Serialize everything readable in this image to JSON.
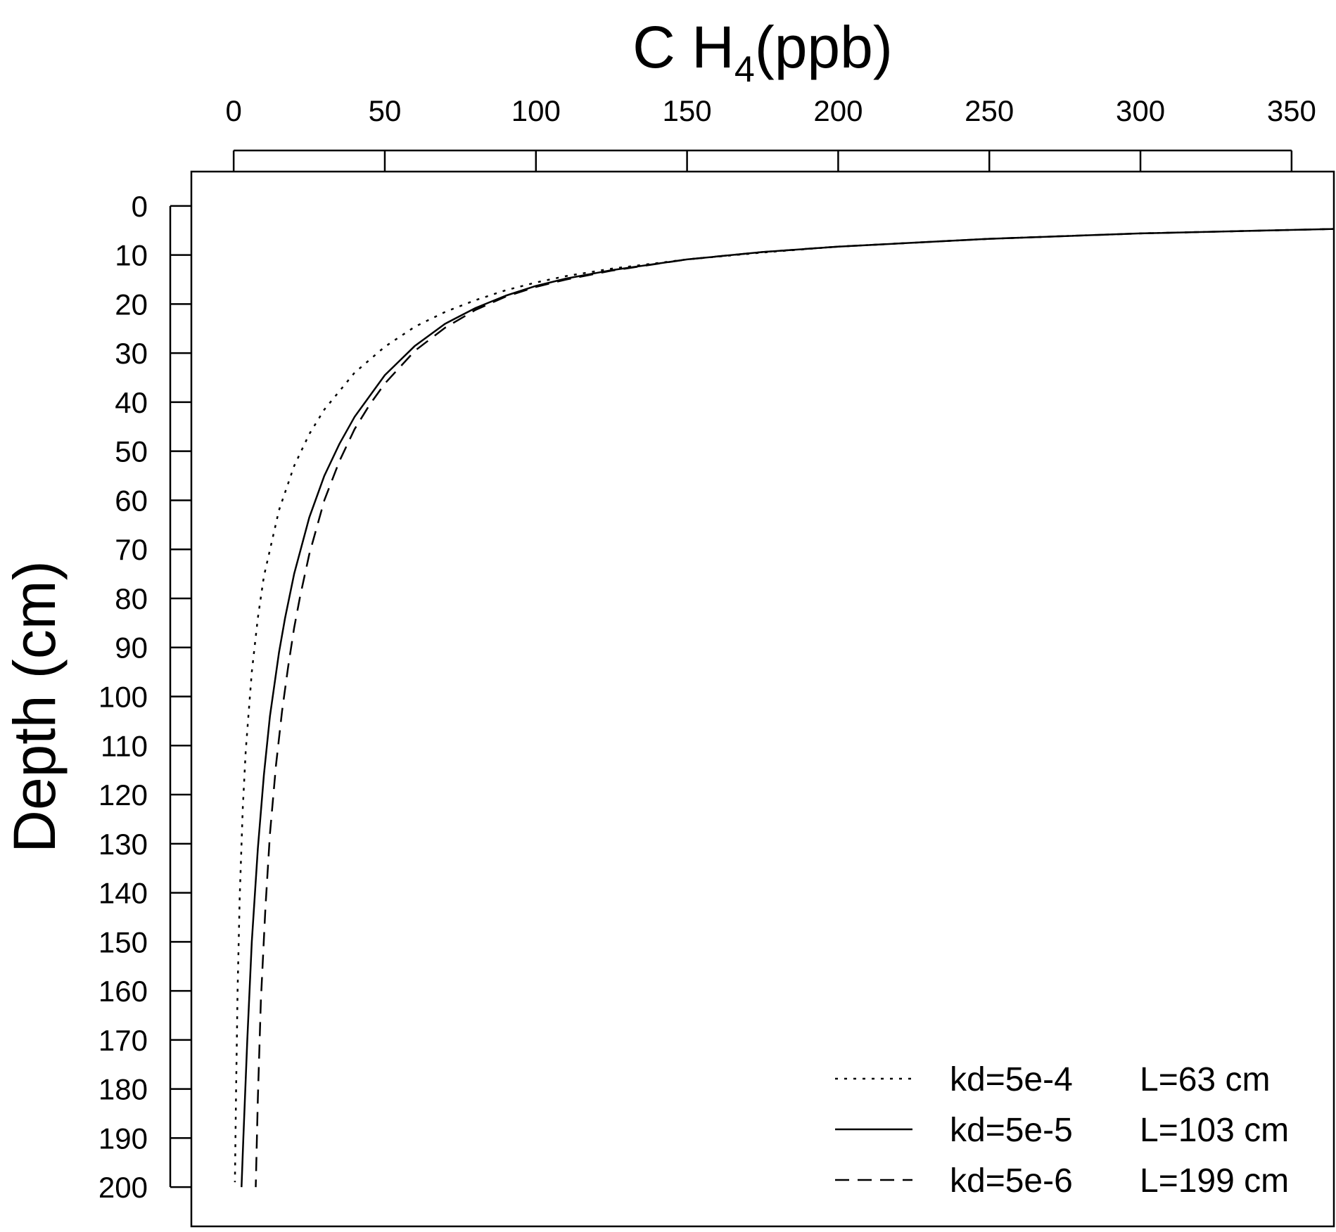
{
  "chart_data": {
    "type": "line",
    "xlabel": "C H",
    "xlabel_subscript": "4",
    "xlabel_suffix": "(ppb)",
    "ylabel": "Depth (cm)",
    "x_axis_position": "top",
    "y_axis_inverted": true,
    "xlim": [
      -14,
      364
    ],
    "ylim": [
      -7,
      208
    ],
    "xticks": [
      0,
      50,
      100,
      150,
      200,
      250,
      300,
      350
    ],
    "yticks": [
      0,
      10,
      20,
      30,
      40,
      50,
      60,
      70,
      80,
      90,
      100,
      110,
      120,
      130,
      140,
      150,
      160,
      170,
      180,
      190,
      200
    ],
    "grid": false,
    "legend_position": "bottom-right",
    "series": [
      {
        "name": "kd=5e-4",
        "label_L": "L=63 cm",
        "style": "dotted",
        "color": "#000000",
        "points": [
          [
            364,
            4.7
          ],
          [
            300,
            5.6
          ],
          [
            250,
            6.7
          ],
          [
            200,
            8.3
          ],
          [
            175,
            9.5
          ],
          [
            150,
            10.9
          ],
          [
            125,
            12.8
          ],
          [
            110,
            14.3
          ],
          [
            100,
            15.6
          ],
          [
            90,
            17.2
          ],
          [
            80,
            19.2
          ],
          [
            70,
            21.6
          ],
          [
            60,
            24.6
          ],
          [
            50,
            28.7
          ],
          [
            40,
            34.0
          ],
          [
            30,
            41.5
          ],
          [
            25,
            46.5
          ],
          [
            20,
            53.0
          ],
          [
            15,
            62.0
          ],
          [
            10,
            75.5
          ],
          [
            8,
            84.0
          ],
          [
            6,
            95.0
          ],
          [
            4,
            111.0
          ],
          [
            3,
            123.0
          ],
          [
            2,
            141.0
          ],
          [
            1.3,
            160.0
          ],
          [
            0.8,
            180.0
          ],
          [
            0.4,
            199.0
          ]
        ]
      },
      {
        "name": "kd=5e-5",
        "label_L": "L=103 cm",
        "style": "solid",
        "color": "#000000",
        "points": [
          [
            364,
            4.7
          ],
          [
            300,
            5.6
          ],
          [
            250,
            6.7
          ],
          [
            200,
            8.3
          ],
          [
            175,
            9.4
          ],
          [
            150,
            10.9
          ],
          [
            125,
            13.1
          ],
          [
            110,
            14.8
          ],
          [
            100,
            16.3
          ],
          [
            90,
            18.3
          ],
          [
            80,
            20.8
          ],
          [
            70,
            24.0
          ],
          [
            60,
            28.5
          ],
          [
            50,
            34.5
          ],
          [
            40,
            43.0
          ],
          [
            35,
            48.5
          ],
          [
            30,
            55.0
          ],
          [
            25,
            63.5
          ],
          [
            20,
            75.0
          ],
          [
            17,
            84.0
          ],
          [
            15,
            91.0
          ],
          [
            12,
            104.0
          ],
          [
            10,
            116.0
          ],
          [
            8,
            131.0
          ],
          [
            6,
            150.0
          ],
          [
            4.5,
            170.0
          ],
          [
            3.2,
            190.0
          ],
          [
            2.6,
            200.0
          ]
        ]
      },
      {
        "name": "kd=5e-6",
        "label_L": "L=199 cm",
        "style": "dashed",
        "color": "#000000",
        "points": [
          [
            364,
            4.7
          ],
          [
            300,
            5.6
          ],
          [
            250,
            6.7
          ],
          [
            200,
            8.3
          ],
          [
            175,
            9.4
          ],
          [
            150,
            10.9
          ],
          [
            125,
            13.2
          ],
          [
            110,
            15.0
          ],
          [
            100,
            16.5
          ],
          [
            90,
            18.5
          ],
          [
            80,
            21.2
          ],
          [
            70,
            24.8
          ],
          [
            60,
            29.5
          ],
          [
            50,
            36.2
          ],
          [
            45,
            40.5
          ],
          [
            40,
            45.5
          ],
          [
            35,
            52.0
          ],
          [
            30,
            60.0
          ],
          [
            25,
            71.0
          ],
          [
            22,
            79.5
          ],
          [
            20,
            86.0
          ],
          [
            18,
            94.0
          ],
          [
            16,
            103.0
          ],
          [
            14,
            114.0
          ],
          [
            12,
            128.0
          ],
          [
            10.5,
            143.0
          ],
          [
            9,
            162.0
          ],
          [
            8,
            182.0
          ],
          [
            7.3,
            200.0
          ]
        ]
      }
    ]
  }
}
